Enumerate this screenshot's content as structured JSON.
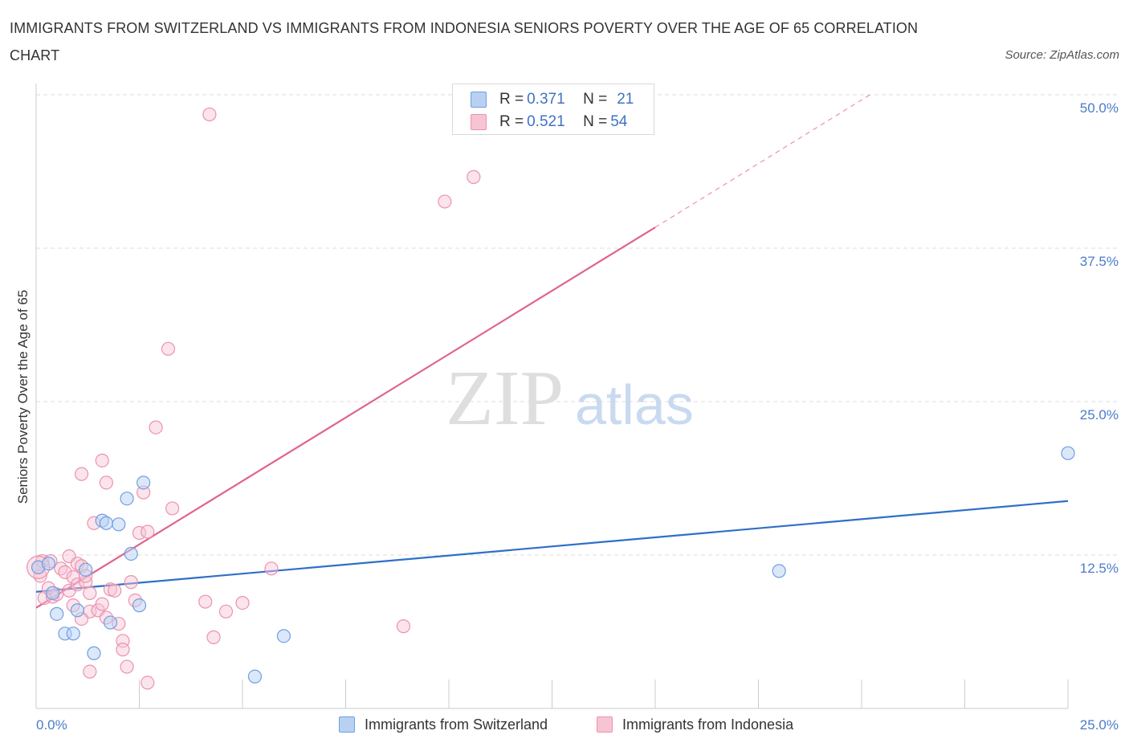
{
  "title": "IMMIGRANTS FROM SWITZERLAND VS IMMIGRANTS FROM INDONESIA SENIORS POVERTY OVER THE AGE OF 65 CORRELATION CHART",
  "source": "Source: ZipAtlas.com",
  "watermark": {
    "zip": "ZIP",
    "atlas": "atlas"
  },
  "colors": {
    "switzerland_fill": "#b8d1f3",
    "switzerland_stroke": "#6e9fe0",
    "switzerland_line": "#2f6fc9",
    "indonesia_fill": "#f7c4d4",
    "indonesia_stroke": "#ec92ae",
    "indonesia_line": "#e0648f",
    "grid": "#dddddd",
    "tick_text": "#4a7cc9"
  },
  "legend": {
    "rows": [
      {
        "r_label": "R = ",
        "r_value": "0.371",
        "n_label": "N = ",
        "n_value": "21"
      },
      {
        "r_label": "R = ",
        "r_value": "0.521",
        "n_label": "N = ",
        "n_value": "54"
      }
    ]
  },
  "chart_data": {
    "type": "scatter",
    "title": "IMMIGRANTS FROM SWITZERLAND VS IMMIGRANTS FROM INDONESIA SENIORS POVERTY OVER THE AGE OF 65 CORRELATION CHART",
    "xlabel": "",
    "ylabel": "Seniors Poverty Over the Age of 65",
    "xlim": [
      0,
      25
    ],
    "ylim": [
      0,
      50
    ],
    "x_tick_labels": [
      "0.0%",
      "25.0%"
    ],
    "y_ticks": [
      12.5,
      25,
      37.5,
      50
    ],
    "y_tick_labels": [
      "12.5%",
      "25.0%",
      "37.5%",
      "50.0%"
    ],
    "grid": true,
    "series": [
      {
        "name": "Immigrants from Switzerland",
        "R": 0.371,
        "N": 21,
        "trend": {
          "x0": 0,
          "y0": 9.5,
          "x1": 25,
          "y1": 16.9
        },
        "points": [
          [
            0.05,
            11.5
          ],
          [
            0.4,
            9.4
          ],
          [
            0.5,
            7.7
          ],
          [
            0.7,
            6.1
          ],
          [
            0.9,
            6.1
          ],
          [
            1.0,
            8.0
          ],
          [
            1.2,
            11.3
          ],
          [
            1.4,
            4.5
          ],
          [
            1.6,
            15.3
          ],
          [
            1.7,
            15.1
          ],
          [
            1.8,
            7.0
          ],
          [
            2.0,
            15.0
          ],
          [
            2.2,
            17.1
          ],
          [
            2.3,
            12.6
          ],
          [
            2.5,
            8.4
          ],
          [
            2.6,
            18.4
          ],
          [
            5.3,
            2.6
          ],
          [
            6.0,
            5.9
          ],
          [
            18.0,
            11.2
          ],
          [
            25.0,
            20.8
          ],
          [
            0.3,
            11.8
          ]
        ]
      },
      {
        "name": "Immigrants from Indonesia",
        "R": 0.521,
        "N": 54,
        "trend": {
          "x0": 0,
          "y0": 8.2,
          "x1": 15,
          "y1": 39.2,
          "dash_to_x": 20.2,
          "dash_to_y": 50.0
        },
        "points": [
          [
            0.05,
            11.5
          ],
          [
            0.1,
            10.8
          ],
          [
            0.2,
            9.0
          ],
          [
            0.3,
            9.8
          ],
          [
            0.4,
            9.1
          ],
          [
            0.5,
            9.3
          ],
          [
            0.6,
            11.4
          ],
          [
            0.7,
            11.1
          ],
          [
            0.8,
            9.6
          ],
          [
            0.8,
            12.4
          ],
          [
            0.9,
            10.7
          ],
          [
            1.0,
            10.1
          ],
          [
            1.0,
            11.8
          ],
          [
            1.1,
            11.6
          ],
          [
            1.2,
            10.3
          ],
          [
            1.2,
            10.8
          ],
          [
            1.3,
            7.9
          ],
          [
            1.3,
            9.4
          ],
          [
            1.4,
            15.1
          ],
          [
            1.5,
            8.0
          ],
          [
            1.6,
            8.5
          ],
          [
            1.7,
            7.4
          ],
          [
            1.8,
            9.7
          ],
          [
            1.9,
            9.6
          ],
          [
            2.0,
            6.9
          ],
          [
            2.1,
            5.5
          ],
          [
            2.1,
            4.8
          ],
          [
            2.2,
            3.4
          ],
          [
            2.3,
            10.3
          ],
          [
            2.4,
            8.8
          ],
          [
            2.5,
            14.3
          ],
          [
            2.6,
            17.6
          ],
          [
            2.7,
            2.1
          ],
          [
            2.7,
            14.4
          ],
          [
            2.9,
            22.9
          ],
          [
            1.3,
            3.0
          ],
          [
            1.1,
            19.1
          ],
          [
            1.6,
            20.2
          ],
          [
            1.7,
            18.4
          ],
          [
            3.2,
            29.3
          ],
          [
            3.3,
            16.3
          ],
          [
            4.1,
            8.7
          ],
          [
            4.2,
            48.4
          ],
          [
            4.3,
            5.8
          ],
          [
            4.6,
            7.9
          ],
          [
            5.0,
            8.6
          ],
          [
            5.7,
            11.4
          ],
          [
            8.9,
            6.7
          ],
          [
            9.9,
            41.3
          ],
          [
            10.6,
            43.3
          ],
          [
            0.15,
            12.0
          ],
          [
            0.35,
            12.0
          ],
          [
            0.9,
            8.4
          ],
          [
            1.1,
            7.3
          ]
        ]
      }
    ]
  },
  "bottom_legend": {
    "switzerland": "Immigrants from Switzerland",
    "indonesia": "Immigrants from Indonesia"
  }
}
